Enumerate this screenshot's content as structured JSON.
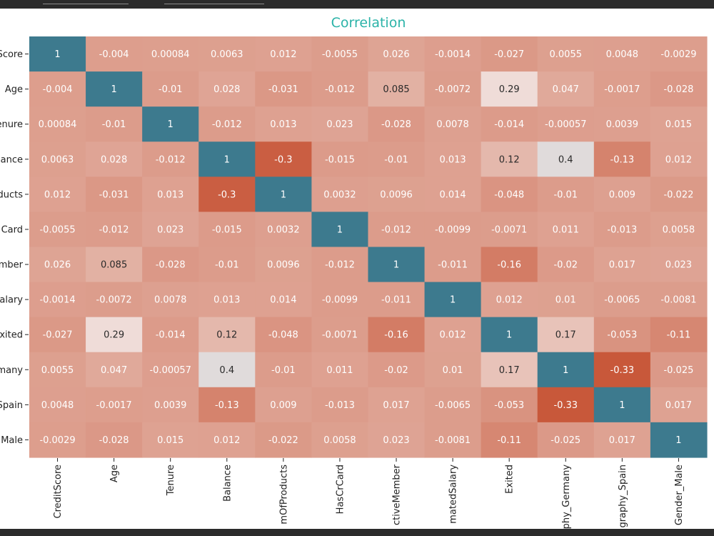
{
  "chart_data": {
    "type": "heatmap",
    "title": "Correlation",
    "row_labels": [
      "Score",
      "Age",
      "enure",
      "ance",
      "ducts",
      "Card",
      "mber",
      "alary",
      "xited",
      "many",
      "Spain",
      "Male"
    ],
    "column_labels": [
      "CreditScore",
      "Age",
      "Tenure",
      "Balance",
      "mOfProducts",
      "HasCrCard",
      "ctiveMember",
      "matedSalary",
      "Exited",
      "phy_Germany",
      "graphy_Spain",
      "Gender_Male"
    ],
    "values": [
      [
        1,
        -0.004,
        0.00084,
        0.0063,
        0.012,
        -0.0055,
        0.026,
        -0.0014,
        -0.027,
        0.0055,
        0.0048,
        -0.0029
      ],
      [
        -0.004,
        1,
        -0.01,
        0.028,
        -0.031,
        -0.012,
        0.085,
        -0.0072,
        0.29,
        0.047,
        -0.0017,
        -0.028
      ],
      [
        0.00084,
        -0.01,
        1,
        -0.012,
        0.013,
        0.023,
        -0.028,
        0.0078,
        -0.014,
        -0.00057,
        0.0039,
        0.015
      ],
      [
        0.0063,
        0.028,
        -0.012,
        1,
        -0.3,
        -0.015,
        -0.01,
        0.013,
        0.12,
        0.4,
        -0.13,
        0.012
      ],
      [
        0.012,
        -0.031,
        0.013,
        -0.3,
        1,
        0.0032,
        0.0096,
        0.014,
        -0.048,
        -0.01,
        0.009,
        -0.022
      ],
      [
        -0.0055,
        -0.012,
        0.023,
        -0.015,
        0.0032,
        1,
        -0.012,
        -0.0099,
        -0.0071,
        0.011,
        -0.013,
        0.0058
      ],
      [
        0.026,
        0.085,
        -0.028,
        -0.01,
        0.0096,
        -0.012,
        1,
        -0.011,
        -0.16,
        -0.02,
        0.017,
        0.023
      ],
      [
        -0.0014,
        -0.0072,
        0.0078,
        0.013,
        0.014,
        -0.0099,
        -0.011,
        1,
        0.012,
        0.01,
        -0.0065,
        -0.0081
      ],
      [
        -0.027,
        0.29,
        -0.014,
        0.12,
        -0.048,
        -0.0071,
        -0.16,
        0.012,
        1,
        0.17,
        -0.053,
        -0.11
      ],
      [
        0.0055,
        0.047,
        -0.00057,
        0.4,
        -0.01,
        0.011,
        -0.02,
        0.01,
        0.17,
        1,
        -0.33,
        -0.025
      ],
      [
        0.0048,
        -0.0017,
        0.0039,
        -0.13,
        0.009,
        -0.013,
        0.017,
        -0.0065,
        -0.053,
        -0.33,
        1,
        0.017
      ],
      [
        -0.0029,
        -0.028,
        0.015,
        0.012,
        -0.022,
        0.0058,
        0.023,
        -0.0081,
        -0.11,
        -0.025,
        0.017,
        1
      ]
    ],
    "display_labels": [
      [
        "1",
        "-0.004",
        "0.00084",
        "0.0063",
        "0.012",
        "-0.0055",
        "0.026",
        "-0.0014",
        "-0.027",
        "0.0055",
        "0.0048",
        "-0.0029"
      ],
      [
        "-0.004",
        "1",
        "-0.01",
        "0.028",
        "-0.031",
        "-0.012",
        "0.085",
        "-0.0072",
        "0.29",
        "0.047",
        "-0.0017",
        "-0.028"
      ],
      [
        "0.00084",
        "-0.01",
        "1",
        "-0.012",
        "0.013",
        "0.023",
        "-0.028",
        "0.0078",
        "-0.014",
        "-0.00057",
        "0.0039",
        "0.015"
      ],
      [
        "0.0063",
        "0.028",
        "-0.012",
        "1",
        "-0.3",
        "-0.015",
        "-0.01",
        "0.013",
        "0.12",
        "0.4",
        "-0.13",
        "0.012"
      ],
      [
        "0.012",
        "-0.031",
        "0.013",
        "-0.3",
        "1",
        "0.0032",
        "0.0096",
        "0.014",
        "-0.048",
        "-0.01",
        "0.009",
        "-0.022"
      ],
      [
        "-0.0055",
        "-0.012",
        "0.023",
        "-0.015",
        "0.0032",
        "1",
        "-0.012",
        "-0.0099",
        "-0.0071",
        "0.011",
        "-0.013",
        "0.0058"
      ],
      [
        "0.026",
        "0.085",
        "-0.028",
        "-0.01",
        "0.0096",
        "-0.012",
        "1",
        "-0.011",
        "-0.16",
        "-0.02",
        "0.017",
        "0.023"
      ],
      [
        "-0.0014",
        "-0.0072",
        "0.0078",
        "0.013",
        "0.014",
        "-0.0099",
        "-0.011",
        "1",
        "0.012",
        "0.01",
        "-0.0065",
        "-0.0081"
      ],
      [
        "-0.027",
        "0.29",
        "-0.014",
        "0.12",
        "-0.048",
        "-0.0071",
        "-0.16",
        "0.012",
        "1",
        "0.17",
        "-0.053",
        "-0.11"
      ],
      [
        "0.0055",
        "0.047",
        "-0.00057",
        "0.4",
        "-0.01",
        "0.011",
        "-0.02",
        "0.01",
        "0.17",
        "1",
        "-0.33",
        "-0.025"
      ],
      [
        "0.0048",
        "-0.0017",
        "0.0039",
        "-0.13",
        "0.009",
        "-0.013",
        "0.017",
        "-0.0065",
        "-0.053",
        "-0.33",
        "1",
        "0.017"
      ],
      [
        "-0.0029",
        "-0.028",
        "0.015",
        "0.012",
        "-0.022",
        "0.0058",
        "0.023",
        "-0.0081",
        "-0.11",
        "-0.025",
        "0.017",
        "1"
      ]
    ],
    "vmin": -0.33,
    "vmax": 1,
    "colormap": "diverging",
    "colors": {
      "low": "#c8583a",
      "mid": "#f2e6e3",
      "high": "#3d7a8e",
      "title": "#2bb3a8",
      "cell_text_light": "#ffffff",
      "cell_text_dark": "#2a2a2a",
      "top_bar": "#2b2b2b"
    }
  }
}
